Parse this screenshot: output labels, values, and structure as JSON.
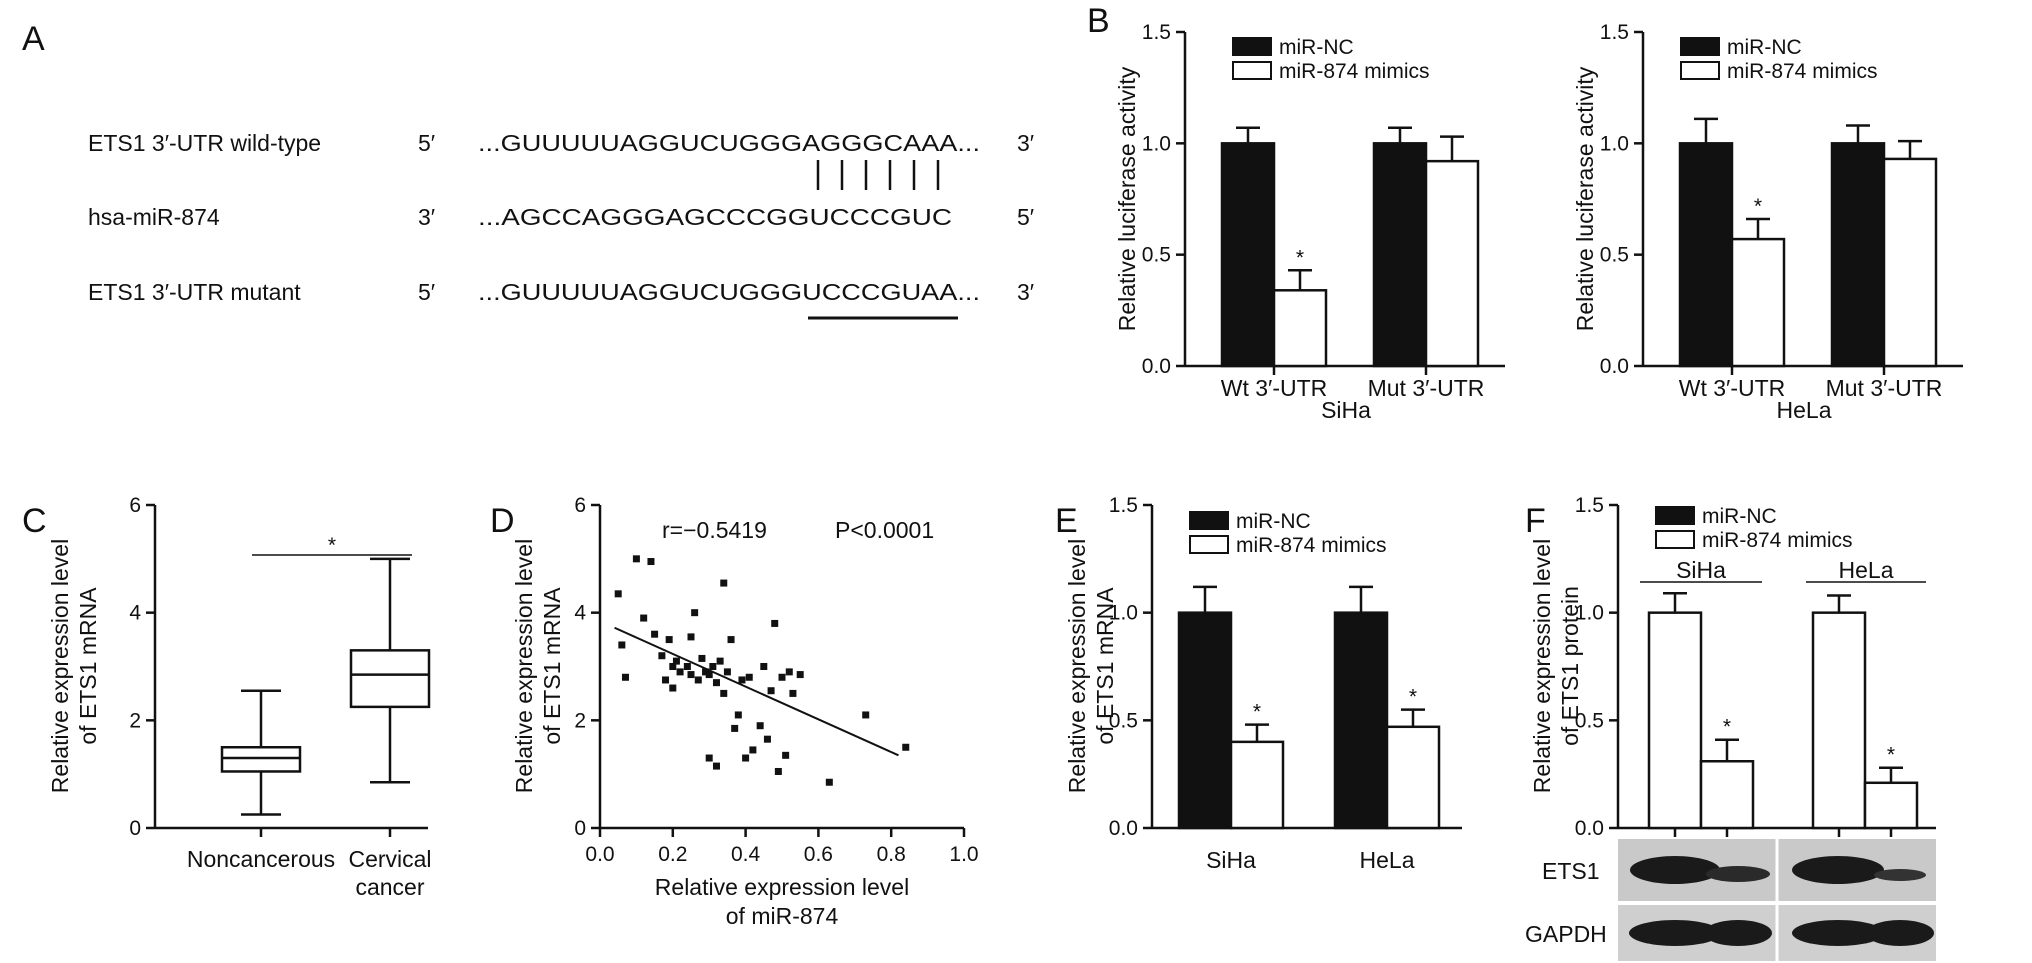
{
  "panel_a": {
    "letter": "A",
    "rows": [
      {
        "name": "ETS1  3′-UTR wild-type",
        "end5": "5′",
        "seq": "...GUUUUUAGGUCUGGGAGGGCAAA...",
        "end3": "3′"
      },
      {
        "name": "hsa-miR-874",
        "end5": "3′",
        "seq": "...AGCCAGGGAGCCCGGUCCCGUC",
        "end3": "5′"
      },
      {
        "name": "ETS1  3′-UTR mutant",
        "end5": "5′",
        "seq": "...GUUUUUAGGUCUGGGUCCCGUAA...",
        "end3": "3′"
      }
    ]
  },
  "chart_data": [
    {
      "id": "B1",
      "letter": "B",
      "type": "bar",
      "ylabel": "Relative luciferase activity",
      "xlabel": "SiHa",
      "categories": [
        "Wt 3′-UTR",
        "Mut 3′-UTR"
      ],
      "ylim": [
        0,
        1.5
      ],
      "yticks": [
        "0.0",
        "0.5",
        "1.0",
        "1.5"
      ],
      "series": [
        {
          "name": "miR-NC",
          "color": "#111111",
          "values": [
            1.0,
            1.0
          ],
          "err": [
            0.07,
            0.07
          ]
        },
        {
          "name": "miR-874 mimics",
          "color": "#ffffff",
          "values": [
            0.34,
            0.92
          ],
          "err": [
            0.09,
            0.11
          ]
        }
      ],
      "sig": [
        {
          "cat": 0,
          "series": 1,
          "label": "*"
        }
      ],
      "legend": "top-left"
    },
    {
      "id": "B2",
      "type": "bar",
      "ylabel": "Relative luciferase activity",
      "xlabel": "HeLa",
      "categories": [
        "Wt 3′-UTR",
        "Mut 3′-UTR"
      ],
      "ylim": [
        0,
        1.5
      ],
      "yticks": [
        "0.0",
        "0.5",
        "1.0",
        "1.5"
      ],
      "series": [
        {
          "name": "miR-NC",
          "color": "#111111",
          "values": [
            1.0,
            1.0
          ],
          "err": [
            0.11,
            0.08
          ]
        },
        {
          "name": "miR-874 mimics",
          "color": "#ffffff",
          "values": [
            0.57,
            0.93
          ],
          "err": [
            0.09,
            0.08
          ]
        }
      ],
      "sig": [
        {
          "cat": 0,
          "series": 1,
          "label": "*"
        }
      ],
      "legend": "top-left"
    },
    {
      "id": "C",
      "letter": "C",
      "type": "box",
      "ylabel": "Relative expression level of ETS1 mRNA",
      "categories": [
        "Noncancerous",
        "Cervical cancer"
      ],
      "ylim": [
        0,
        6
      ],
      "yticks": [
        "0",
        "2",
        "4",
        "6"
      ],
      "boxes": [
        {
          "min": 0.25,
          "q1": 1.05,
          "median": 1.3,
          "q3": 1.5,
          "max": 2.55
        },
        {
          "min": 0.85,
          "q1": 2.25,
          "median": 2.85,
          "q3": 3.3,
          "max": 5.0
        }
      ],
      "sig_label": "*"
    },
    {
      "id": "D",
      "letter": "D",
      "type": "scatter",
      "ylabel": "Relative expression level of ETS1 mRNA",
      "xlabel": "Relative expression level of miR-874",
      "xlim": [
        0,
        1.0
      ],
      "ylim": [
        0,
        6
      ],
      "xticks": [
        "0.0",
        "0.2",
        "0.4",
        "0.6",
        "0.8",
        "1.0"
      ],
      "yticks": [
        "0",
        "2",
        "4",
        "6"
      ],
      "annotation_r": "r=−0.5419",
      "annotation_p": "P<0.0001",
      "fit": {
        "x": [
          0.04,
          0.82
        ],
        "y": [
          3.72,
          1.35
        ]
      },
      "points": [
        [
          0.05,
          4.35
        ],
        [
          0.06,
          3.4
        ],
        [
          0.07,
          2.8
        ],
        [
          0.1,
          5.0
        ],
        [
          0.12,
          3.9
        ],
        [
          0.14,
          4.95
        ],
        [
          0.15,
          3.6
        ],
        [
          0.17,
          3.2
        ],
        [
          0.18,
          2.75
        ],
        [
          0.19,
          3.5
        ],
        [
          0.2,
          3.0
        ],
        [
          0.2,
          2.6
        ],
        [
          0.21,
          3.1
        ],
        [
          0.22,
          2.9
        ],
        [
          0.24,
          3.0
        ],
        [
          0.25,
          3.55
        ],
        [
          0.25,
          2.85
        ],
        [
          0.26,
          4.0
        ],
        [
          0.27,
          2.75
        ],
        [
          0.28,
          3.15
        ],
        [
          0.29,
          2.9
        ],
        [
          0.3,
          1.3
        ],
        [
          0.3,
          2.85
        ],
        [
          0.31,
          3.0
        ],
        [
          0.32,
          1.15
        ],
        [
          0.32,
          2.7
        ],
        [
          0.33,
          3.1
        ],
        [
          0.34,
          2.5
        ],
        [
          0.34,
          4.55
        ],
        [
          0.35,
          2.9
        ],
        [
          0.36,
          3.5
        ],
        [
          0.37,
          1.85
        ],
        [
          0.38,
          2.1
        ],
        [
          0.39,
          2.75
        ],
        [
          0.4,
          1.3
        ],
        [
          0.41,
          2.8
        ],
        [
          0.42,
          1.45
        ],
        [
          0.44,
          1.9
        ],
        [
          0.45,
          3.0
        ],
        [
          0.46,
          1.65
        ],
        [
          0.47,
          2.55
        ],
        [
          0.48,
          3.8
        ],
        [
          0.49,
          1.05
        ],
        [
          0.5,
          2.8
        ],
        [
          0.51,
          1.35
        ],
        [
          0.52,
          2.9
        ],
        [
          0.53,
          2.5
        ],
        [
          0.55,
          2.85
        ],
        [
          0.63,
          0.85
        ],
        [
          0.73,
          2.1
        ],
        [
          0.84,
          1.5
        ]
      ]
    },
    {
      "id": "E",
      "letter": "E",
      "type": "bar",
      "ylabel": "Relative expression level of ETS1 mRNA",
      "categories": [
        "SiHa",
        "HeLa"
      ],
      "ylim": [
        0,
        1.5
      ],
      "yticks": [
        "0.0",
        "0.5",
        "1.0",
        "1.5"
      ],
      "series": [
        {
          "name": "miR-NC",
          "color": "#111111",
          "values": [
            1.0,
            1.0
          ],
          "err": [
            0.12,
            0.12
          ]
        },
        {
          "name": "miR-874 mimics",
          "color": "#ffffff",
          "values": [
            0.4,
            0.47
          ],
          "err": [
            0.08,
            0.08
          ]
        }
      ],
      "sig": [
        {
          "cat": 0,
          "series": 1,
          "label": "*"
        },
        {
          "cat": 1,
          "series": 1,
          "label": "*"
        }
      ],
      "legend": "top-left"
    },
    {
      "id": "F",
      "letter": "F",
      "type": "bar",
      "ylabel": "Relative expression level of ETS1 protein",
      "group_labels": [
        "SiHa",
        "HeLa"
      ],
      "ylim": [
        0,
        1.5
      ],
      "yticks": [
        "0.0",
        "0.5",
        "1.0",
        "1.5"
      ],
      "series": [
        {
          "name": "miR-NC",
          "color": "#111111",
          "values": [
            1.0,
            1.0
          ],
          "err": [
            0.09,
            0.08
          ]
        },
        {
          "name": "miR-874 mimics",
          "color": "#ffffff",
          "values": [
            0.31,
            0.21
          ],
          "err": [
            0.1,
            0.07
          ]
        }
      ],
      "bar_fill_all": "#ffffff",
      "sig": [
        {
          "cat": 0,
          "series": 1,
          "label": "*"
        },
        {
          "cat": 1,
          "series": 1,
          "label": "*"
        }
      ],
      "legend": "top-left",
      "blot_labels": [
        "ETS1",
        "GAPDH"
      ]
    }
  ]
}
